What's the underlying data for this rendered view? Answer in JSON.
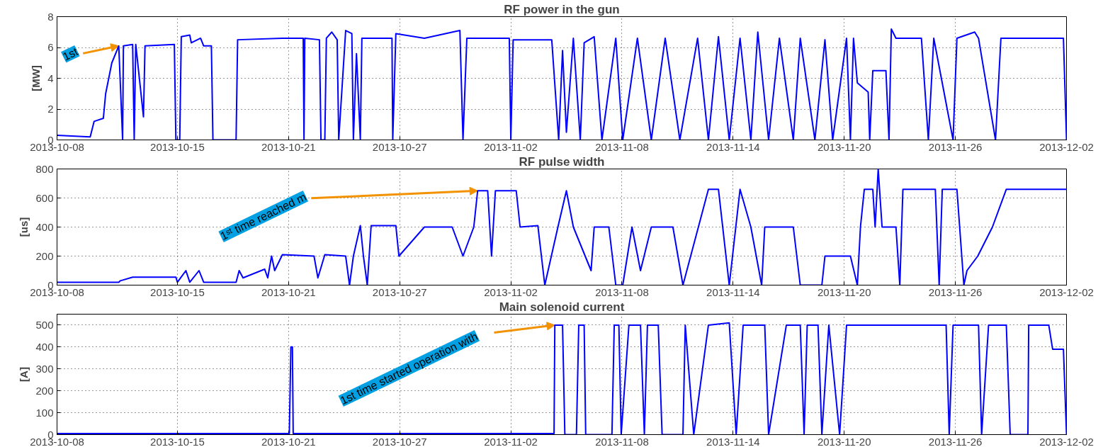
{
  "chart_data": [
    {
      "type": "line",
      "title": "RF power in the gun",
      "ylabel": "[MW]",
      "grid": true,
      "xlim": [
        "2013-10-08T12:00",
        "2013-12-02T00:00"
      ],
      "xticks": [
        {
          "value": "2013-10-08T12:00",
          "label": "2013-10-08"
        },
        {
          "value": "2013-10-15",
          "label": "2013-10-15"
        },
        {
          "value": "2013-10-21",
          "label": "2013-10-21"
        },
        {
          "value": "2013-10-27",
          "label": "2013-10-27"
        },
        {
          "value": "2013-11-02",
          "label": "2013-11-02"
        },
        {
          "value": "2013-11-08",
          "label": "2013-11-08"
        },
        {
          "value": "2013-11-14",
          "label": "2013-11-14"
        },
        {
          "value": "2013-11-20",
          "label": "2013-11-20"
        },
        {
          "value": "2013-11-26",
          "label": "2013-11-26"
        },
        {
          "value": "2013-12-02",
          "label": "2013-12-02"
        }
      ],
      "ylim": [
        0,
        8
      ],
      "yticks": [
        0,
        2,
        4,
        6,
        8
      ],
      "annotations": [
        {
          "text": "1st",
          "x": "2013-10-11T20:00",
          "y": 6.1
        }
      ],
      "x": [
        "2013-10-08T12:00",
        "2013-10-10T07:00",
        "2013-10-10T12:00",
        "2013-10-11T00:00",
        "2013-10-11T03:00",
        "2013-10-11T11:00",
        "2013-10-11T20:00",
        "2013-10-12T01:00",
        "2013-10-12T02:00",
        "2013-10-12T14:00",
        "2013-10-12T16:00",
        "2013-10-12T18:00",
        "2013-10-13T04:00",
        "2013-10-13T06:00",
        "2013-10-14T20:00",
        "2013-10-14T22:00",
        "2013-10-15T03:00",
        "2013-10-15T05:00",
        "2013-10-15T16:00",
        "2013-10-15T18:00",
        "2013-10-16T06:00",
        "2013-10-16T10:00",
        "2013-10-16T20:00",
        "2013-10-16T22:00",
        "2013-10-18T04:00",
        "2013-10-18T06:00",
        "2013-10-20T16:00",
        "2013-10-21T19:00",
        "2013-10-21T20:00",
        "2013-10-21T21:00",
        "2013-10-22T16:00",
        "2013-10-22T18:00",
        "2013-10-22T23:00",
        "2013-10-23T01:00",
        "2013-10-23T08:00",
        "2013-10-23T15:00",
        "2013-10-23T17:00",
        "2013-10-24T02:00",
        "2013-10-24T10:00",
        "2013-10-24T12:00",
        "2013-10-24T16:00",
        "2013-10-24T21:00",
        "2013-10-24T23:00",
        "2013-10-26T14:00",
        "2013-10-26T15:00",
        "2013-10-26T19:00",
        "2013-10-28T08:00",
        "2013-10-30T06:00",
        "2013-10-30T10:00",
        "2013-10-30T15:00",
        "2013-11-01T22:00",
        "2013-11-02T00:00",
        "2013-11-02T03:00",
        "2013-11-04T05:00",
        "2013-11-04T14:00",
        "2013-11-04T19:00",
        "2013-11-05T00:00",
        "2013-11-05T09:00",
        "2013-11-05T18:00",
        "2013-11-05T23:00",
        "2013-11-06T12:00",
        "2013-11-06T22:00",
        "2013-11-07T16:00",
        "2013-11-08T01:00",
        "2013-11-08T20:00",
        "2013-11-09T14:00",
        "2013-11-10T08:00",
        "2013-11-11T03:00",
        "2013-11-12T02:00",
        "2013-11-12T16:00",
        "2013-11-13T05:00",
        "2013-11-13T19:00",
        "2013-11-14T09:00",
        "2013-11-14T23:00",
        "2013-11-15T08:00",
        "2013-11-15T22:00",
        "2013-11-16T12:00",
        "2013-11-17T06:00",
        "2013-11-17T15:00",
        "2013-11-18T10:00",
        "2013-11-18T23:00",
        "2013-11-19T09:00",
        "2013-11-20T03:00",
        "2013-11-20T08:00",
        "2013-11-20T12:00",
        "2013-11-20T17:00",
        "2013-11-21T07:00",
        "2013-11-21T09:00",
        "2013-11-21T13:00",
        "2013-11-22T06:00",
        "2013-11-22T10:00",
        "2013-11-22T13:00",
        "2013-11-22T19:00",
        "2013-11-24T04:00",
        "2013-11-24T13:00",
        "2013-11-24T20:00",
        "2013-11-25T21:00",
        "2013-11-26T02:00",
        "2013-11-27T01:00",
        "2013-11-27T06:00",
        "2013-11-28T04:00",
        "2013-11-28T11:00",
        "2013-12-01T20:00",
        "2013-12-02T00:00"
      ],
      "series": [
        {
          "color": "#0000ff",
          "values": [
            0.3,
            0.2,
            1.2,
            1.4,
            3.0,
            5.0,
            6.1,
            0,
            6.1,
            6.2,
            0,
            6.2,
            1.5,
            6.1,
            6.2,
            0,
            0,
            6.7,
            6.8,
            6.3,
            6.6,
            6.1,
            6.1,
            0,
            0,
            6.5,
            6.6,
            6.6,
            0,
            6.6,
            6.5,
            0,
            0,
            6.6,
            7.0,
            6.5,
            0,
            7.1,
            6.9,
            0,
            5.6,
            0,
            6.6,
            6.6,
            0,
            6.9,
            6.6,
            7.1,
            0,
            6.6,
            6.6,
            0,
            6.5,
            6.5,
            0,
            5.8,
            0.5,
            6.6,
            0,
            6.3,
            6.7,
            0,
            6.6,
            0,
            6.6,
            0,
            6.6,
            0,
            6.6,
            0,
            6.7,
            0,
            6.6,
            0,
            7.0,
            0,
            6.6,
            0,
            6.6,
            0,
            6.5,
            0,
            6.6,
            0,
            6.6,
            3.7,
            3.1,
            0,
            4.5,
            4.5,
            0,
            7.2,
            6.6,
            6.6,
            0,
            6.6,
            0,
            6.6,
            7.0,
            6.6,
            0,
            6.6,
            6.6,
            0
          ]
        }
      ]
    },
    {
      "type": "line",
      "title": "RF pulse width",
      "ylabel": "[us]",
      "grid": true,
      "xlim": [
        "2013-10-08T12:00",
        "2013-12-02T00:00"
      ],
      "xticks": [
        {
          "value": "2013-10-08T12:00",
          "label": "2013-10-08"
        },
        {
          "value": "2013-10-15",
          "label": "2013-10-15"
        },
        {
          "value": "2013-10-21",
          "label": "2013-10-21"
        },
        {
          "value": "2013-10-27",
          "label": "2013-10-27"
        },
        {
          "value": "2013-11-02",
          "label": "2013-11-02"
        },
        {
          "value": "2013-11-08",
          "label": "2013-11-08"
        },
        {
          "value": "2013-11-14",
          "label": "2013-11-14"
        },
        {
          "value": "2013-11-20",
          "label": "2013-11-20"
        },
        {
          "value": "2013-11-26",
          "label": "2013-11-26"
        },
        {
          "value": "2013-12-02",
          "label": "2013-12-02"
        }
      ],
      "ylim": [
        0,
        800
      ],
      "yticks": [
        0,
        200,
        400,
        600,
        800
      ],
      "annotations": [
        {
          "text": "1ˢᵗ time reached m",
          "x": "2013-10-31T05:00",
          "y": 650
        }
      ],
      "x": [
        "2013-10-08T12:00",
        "2013-10-11T20:00",
        "2013-10-11T22:00",
        "2013-10-12T14:00",
        "2013-10-14T22:00",
        "2013-10-15T00:00",
        "2013-10-15T11:00",
        "2013-10-15T16:00",
        "2013-10-16T04:00",
        "2013-10-16T10:00",
        "2013-10-18T04:00",
        "2013-10-18T08:00",
        "2013-10-18T13:00",
        "2013-10-19T17:00",
        "2013-10-19T21:00",
        "2013-10-20T02:00",
        "2013-10-20T06:00",
        "2013-10-20T16:00",
        "2013-10-22T09:00",
        "2013-10-22T14:00",
        "2013-10-22T23:00",
        "2013-10-24T02:00",
        "2013-10-24T07:00",
        "2013-10-24T12:00",
        "2013-10-24T21:00",
        "2013-10-25T01:00",
        "2013-10-25T06:00",
        "2013-10-25T11:00",
        "2013-10-26T19:00",
        "2013-10-26T23:00",
        "2013-10-28T08:00",
        "2013-10-29T20:00",
        "2013-10-30T10:00",
        "2013-10-31T00:00",
        "2013-10-31T05:00",
        "2013-10-31T18:00",
        "2013-10-31T23:00",
        "2013-11-01T04:00",
        "2013-11-02T07:00",
        "2013-11-02T12:00",
        "2013-11-03T11:00",
        "2013-11-03T20:00",
        "2013-11-04T13:00",
        "2013-11-05T00:00",
        "2013-11-05T09:00",
        "2013-11-06T08:00",
        "2013-11-06T12:00",
        "2013-11-07T07:00",
        "2013-11-07T16:00",
        "2013-11-08T01:00",
        "2013-11-08T13:00",
        "2013-11-09T00:00",
        "2013-11-09T14:00",
        "2013-11-10T18:00",
        "2013-11-11T07:00",
        "2013-11-12T16:00",
        "2013-11-13T05:00",
        "2013-11-13T19:00",
        "2013-11-14T09:00",
        "2013-11-14T23:00",
        "2013-11-15T13:00",
        "2013-11-15T17:00",
        "2013-11-17T06:00",
        "2013-11-17T15:00",
        "2013-11-18T19:00",
        "2013-11-18T23:00",
        "2013-11-20T08:00",
        "2013-11-20T17:00",
        "2013-11-20T21:00",
        "2013-11-21T02:00",
        "2013-11-21T13:00",
        "2013-11-21T16:00",
        "2013-11-21T20:00",
        "2013-11-22T01:00",
        "2013-11-22T19:00",
        "2013-11-23T00:00",
        "2013-11-23T04:00",
        "2013-11-24T22:00",
        "2013-11-25T03:00",
        "2013-11-25T07:00",
        "2013-11-26T02:00",
        "2013-11-26T11:00",
        "2013-11-26T15:00",
        "2013-11-27T05:00",
        "2013-11-28T00:00",
        "2013-11-28T18:00",
        "2013-12-02T00:00"
      ],
      "series": [
        {
          "color": "#0000ff",
          "values": [
            20,
            20,
            30,
            55,
            55,
            20,
            100,
            20,
            100,
            20,
            20,
            100,
            50,
            110,
            50,
            200,
            100,
            210,
            200,
            50,
            210,
            200,
            0,
            200,
            410,
            200,
            0,
            410,
            410,
            200,
            400,
            400,
            200,
            400,
            650,
            650,
            200,
            650,
            650,
            400,
            410,
            0,
            400,
            650,
            400,
            100,
            400,
            400,
            0,
            0,
            400,
            100,
            400,
            400,
            0,
            660,
            660,
            0,
            660,
            400,
            0,
            400,
            400,
            0,
            0,
            200,
            200,
            0,
            400,
            660,
            660,
            400,
            800,
            400,
            400,
            0,
            660,
            660,
            0,
            660,
            660,
            0,
            100,
            200,
            400,
            660,
            660
          ]
        }
      ]
    },
    {
      "type": "line",
      "title": "Main solenoid current",
      "ylabel": "[A]",
      "grid": true,
      "xlim": [
        "2013-10-08T12:00",
        "2013-12-02T00:00"
      ],
      "xticks": [
        {
          "value": "2013-10-08T12:00",
          "label": "2013-10-08"
        },
        {
          "value": "2013-10-15",
          "label": "2013-10-15"
        },
        {
          "value": "2013-10-21",
          "label": "2013-10-21"
        },
        {
          "value": "2013-10-27",
          "label": "2013-10-27"
        },
        {
          "value": "2013-11-02",
          "label": "2013-11-02"
        },
        {
          "value": "2013-11-08",
          "label": "2013-11-08"
        },
        {
          "value": "2013-11-14",
          "label": "2013-11-14"
        },
        {
          "value": "2013-11-20",
          "label": "2013-11-20"
        },
        {
          "value": "2013-11-26",
          "label": "2013-11-26"
        },
        {
          "value": "2013-12-02",
          "label": "2013-12-02"
        }
      ],
      "ylim": [
        0,
        550
      ],
      "yticks": [
        0,
        100,
        200,
        300,
        400,
        500
      ],
      "annotations": [
        {
          "text": "1st time started operation with",
          "x": "2013-11-04T09:00",
          "y": 500
        }
      ],
      "x": [
        "2013-10-08T12:00",
        "2013-10-21T01:00",
        "2013-10-21T03:00",
        "2013-10-21T05:00",
        "2013-10-21T06:00",
        "2013-11-04T08:00",
        "2013-11-04T09:00",
        "2013-11-04T19:00",
        "2013-11-04T22:00",
        "2013-11-05T13:00",
        "2013-11-05T16:00",
        "2013-11-05T23:00",
        "2013-11-06T01:00",
        "2013-11-07T11:00",
        "2013-11-07T14:00",
        "2013-11-07T20:00",
        "2013-11-07T23:00",
        "2013-11-08T09:00",
        "2013-11-09T00:00",
        "2013-11-09T05:00",
        "2013-11-09T09:00",
        "2013-11-09T23:00",
        "2013-11-10T04:00",
        "2013-11-11T07:00",
        "2013-11-11T10:00",
        "2013-11-11T21:00",
        "2013-11-12T16:00",
        "2013-11-13T19:00",
        "2013-11-14T04:00",
        "2013-11-14T13:00",
        "2013-11-15T17:00",
        "2013-11-15T22:00",
        "2013-11-16T21:00",
        "2013-11-17T15:00",
        "2013-11-17T20:00",
        "2013-11-18T00:00",
        "2013-11-18T14:00",
        "2013-11-18T19:00",
        "2013-11-19T04:00",
        "2013-11-19T18:00",
        "2013-11-20T03:00",
        "2013-11-25T12:00",
        "2013-11-25T16:00",
        "2013-11-25T21:00",
        "2013-11-27T06:00",
        "2013-11-27T10:00",
        "2013-11-27T19:00",
        "2013-11-28T18:00",
        "2013-11-28T23:00",
        "2013-11-29T22:00",
        "2013-11-29T23:00",
        "2013-12-01T01:00",
        "2013-12-01T06:00",
        "2013-12-01T20:00",
        "2013-12-02T00:00"
      ],
      "series": [
        {
          "color": "#0000ff",
          "values": [
            5,
            5,
            400,
            400,
            5,
            5,
            500,
            500,
            0,
            0,
            500,
            500,
            0,
            0,
            500,
            500,
            0,
            500,
            500,
            0,
            500,
            500,
            0,
            0,
            500,
            0,
            500,
            510,
            0,
            500,
            500,
            0,
            500,
            500,
            0,
            500,
            500,
            0,
            500,
            0,
            500,
            500,
            0,
            500,
            500,
            0,
            500,
            500,
            0,
            0,
            500,
            500,
            390,
            390,
            0
          ]
        }
      ]
    }
  ]
}
